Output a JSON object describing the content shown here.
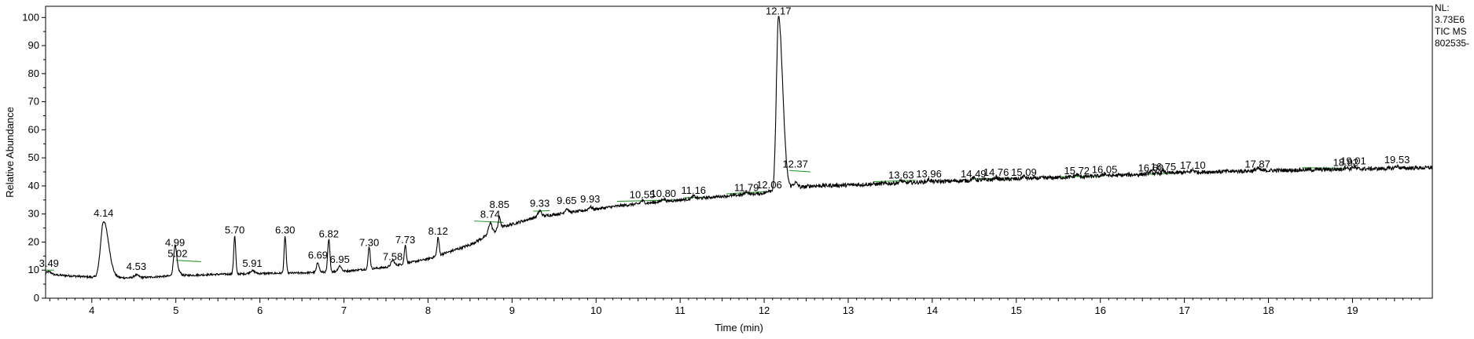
{
  "info": {
    "nl_label": "NL:",
    "nl_value": "3.73E6",
    "scan_filter": "TIC  MS",
    "file_name": "802535-"
  },
  "chart_data": {
    "type": "line",
    "xlabel": "Time (min)",
    "ylabel": "Relative Abundance",
    "xlim": [
      3.45,
      19.95
    ],
    "ylim": [
      0,
      104
    ],
    "x_ticks": [
      4,
      5,
      6,
      7,
      8,
      9,
      10,
      11,
      12,
      13,
      14,
      15,
      16,
      17,
      18,
      19
    ],
    "y_ticks": [
      0,
      10,
      20,
      30,
      40,
      50,
      60,
      70,
      80,
      90,
      100
    ],
    "grid": false,
    "colors": {
      "trace": "#000000",
      "integration": "#2e9a2e",
      "frame": "#000000"
    },
    "baseline_points": [
      {
        "x": 3.45,
        "y": 8.5
      },
      {
        "x": 4.0,
        "y": 7.5
      },
      {
        "x": 4.5,
        "y": 7.2
      },
      {
        "x": 5.0,
        "y": 8.0
      },
      {
        "x": 5.5,
        "y": 8.5
      },
      {
        "x": 6.0,
        "y": 8.8
      },
      {
        "x": 6.5,
        "y": 9.0
      },
      {
        "x": 7.0,
        "y": 9.6
      },
      {
        "x": 7.5,
        "y": 11.0
      },
      {
        "x": 8.0,
        "y": 14.0
      },
      {
        "x": 8.5,
        "y": 19.0
      },
      {
        "x": 8.9,
        "y": 25.5
      },
      {
        "x": 9.3,
        "y": 29.0
      },
      {
        "x": 9.8,
        "y": 31.0
      },
      {
        "x": 10.3,
        "y": 33.0
      },
      {
        "x": 11.0,
        "y": 35.0
      },
      {
        "x": 11.5,
        "y": 36.3
      },
      {
        "x": 12.05,
        "y": 37.5
      },
      {
        "x": 12.55,
        "y": 40.0
      },
      {
        "x": 13.0,
        "y": 40.3
      },
      {
        "x": 14.0,
        "y": 41.5
      },
      {
        "x": 15.0,
        "y": 42.5
      },
      {
        "x": 16.0,
        "y": 43.5
      },
      {
        "x": 17.0,
        "y": 44.8
      },
      {
        "x": 18.0,
        "y": 45.5
      },
      {
        "x": 19.0,
        "y": 46.0
      },
      {
        "x": 19.95,
        "y": 46.5
      }
    ],
    "peaks": [
      {
        "label": "3.49",
        "x": 3.49,
        "y": 10.0,
        "height": 1.0,
        "width": 0.03
      },
      {
        "label": "4.14",
        "x": 4.14,
        "y": 28.0,
        "height": 20.0,
        "width": 0.035
      },
      {
        "label": "4.53",
        "x": 4.53,
        "y": 9.0,
        "height": 1.0,
        "width": 0.03
      },
      {
        "label": "4.99",
        "x": 4.99,
        "y": 17.5,
        "height": 9.5,
        "width": 0.018
      },
      {
        "label": "5.02",
        "x": 5.02,
        "y": 13.5,
        "height": 2.0,
        "width": 0.03
      },
      {
        "label": "5.70",
        "x": 5.7,
        "y": 22.0,
        "height": 13.5,
        "width": 0.012
      },
      {
        "label": "5.91",
        "x": 5.91,
        "y": 10.0,
        "height": 1.0,
        "width": 0.03
      },
      {
        "label": "6.30",
        "x": 6.3,
        "y": 22.0,
        "height": 13.0,
        "width": 0.012
      },
      {
        "label": "6.69",
        "x": 6.69,
        "y": 13.0,
        "height": 3.5,
        "width": 0.015
      },
      {
        "label": "6.82",
        "x": 6.82,
        "y": 20.5,
        "height": 11.5,
        "width": 0.013
      },
      {
        "label": "6.95",
        "x": 6.95,
        "y": 11.5,
        "height": 2.0,
        "width": 0.02
      },
      {
        "label": "7.30",
        "x": 7.3,
        "y": 17.5,
        "height": 8.0,
        "width": 0.012
      },
      {
        "label": "7.58",
        "x": 7.58,
        "y": 12.5,
        "height": 2.0,
        "width": 0.02
      },
      {
        "label": "7.73",
        "x": 7.73,
        "y": 18.5,
        "height": 6.5,
        "width": 0.012
      },
      {
        "label": "8.12",
        "x": 8.12,
        "y": 21.5,
        "height": 6.5,
        "width": 0.012
      },
      {
        "label": "8.74",
        "x": 8.74,
        "y": 27.5,
        "height": 4.0,
        "width": 0.02
      },
      {
        "label": "8.85",
        "x": 8.85,
        "y": 31.0,
        "height": 4.0,
        "width": 0.015
      },
      {
        "label": "9.33",
        "x": 9.33,
        "y": 31.5,
        "height": 2.0,
        "width": 0.02
      },
      {
        "label": "9.65",
        "x": 9.65,
        "y": 32.5,
        "height": 1.5,
        "width": 0.02
      },
      {
        "label": "9.93",
        "x": 9.93,
        "y": 33.0,
        "height": 1.0,
        "width": 0.02
      },
      {
        "label": "10.55",
        "x": 10.55,
        "y": 34.5,
        "height": 1.0,
        "width": 0.02
      },
      {
        "label": "10.80",
        "x": 10.8,
        "y": 35.0,
        "height": 1.0,
        "width": 0.02
      },
      {
        "label": "11.16",
        "x": 11.16,
        "y": 36.0,
        "height": 1.0,
        "width": 0.02
      },
      {
        "label": "11.79",
        "x": 11.79,
        "y": 37.0,
        "height": 1.0,
        "width": 0.02
      },
      {
        "label": "12.06",
        "x": 12.06,
        "y": 38.0,
        "height": 1.0,
        "width": 0.02
      },
      {
        "label": "12.17",
        "x": 12.17,
        "y": 100.0,
        "height": 62.0,
        "width": 0.025
      },
      {
        "label": "12.37",
        "x": 12.37,
        "y": 45.5,
        "height": 2.0,
        "width": 0.03
      },
      {
        "label": "13.63",
        "x": 13.63,
        "y": 41.5,
        "height": 0.8,
        "width": 0.02
      },
      {
        "label": "13.96",
        "x": 13.96,
        "y": 42.0,
        "height": 0.8,
        "width": 0.02
      },
      {
        "label": "14.49",
        "x": 14.49,
        "y": 42.0,
        "height": 0.8,
        "width": 0.02
      },
      {
        "label": "14.76",
        "x": 14.76,
        "y": 42.5,
        "height": 0.8,
        "width": 0.02
      },
      {
        "label": "15.09",
        "x": 15.09,
        "y": 42.5,
        "height": 0.8,
        "width": 0.02
      },
      {
        "label": "15.72",
        "x": 15.72,
        "y": 43.0,
        "height": 0.8,
        "width": 0.02
      },
      {
        "label": "16.05",
        "x": 16.05,
        "y": 43.5,
        "height": 0.8,
        "width": 0.02
      },
      {
        "label": "16.60",
        "x": 16.6,
        "y": 44.0,
        "height": 0.8,
        "width": 0.02
      },
      {
        "label": "16.75",
        "x": 16.75,
        "y": 44.5,
        "height": 0.8,
        "width": 0.02
      },
      {
        "label": "17.10",
        "x": 17.1,
        "y": 45.0,
        "height": 0.8,
        "width": 0.02
      },
      {
        "label": "17.87",
        "x": 17.87,
        "y": 45.5,
        "height": 0.8,
        "width": 0.02
      },
      {
        "label": "18.92",
        "x": 18.92,
        "y": 46.0,
        "height": 0.8,
        "width": 0.02
      },
      {
        "label": "19.01",
        "x": 19.01,
        "y": 46.5,
        "height": 0.8,
        "width": 0.02
      },
      {
        "label": "19.53",
        "x": 19.53,
        "y": 47.0,
        "height": 0.8,
        "width": 0.02
      }
    ],
    "integration_segments": [
      {
        "x": [
          3.45,
          3.55
        ],
        "y": [
          10.0,
          10.0
        ]
      },
      {
        "x": [
          5.0,
          5.3
        ],
        "y": [
          13.5,
          13.0
        ]
      },
      {
        "x": [
          8.55,
          8.9
        ],
        "y": [
          27.5,
          27.0
        ]
      },
      {
        "x": [
          9.25,
          9.45
        ],
        "y": [
          31.0,
          31.2
        ]
      },
      {
        "x": [
          10.25,
          10.95
        ],
        "y": [
          34.5,
          35.0
        ]
      },
      {
        "x": [
          11.05,
          11.3
        ],
        "y": [
          35.8,
          36.0
        ]
      },
      {
        "x": [
          11.55,
          12.05
        ],
        "y": [
          37.2,
          38.0
        ]
      },
      {
        "x": [
          12.3,
          12.55
        ],
        "y": [
          45.5,
          45.0
        ]
      },
      {
        "x": [
          13.3,
          13.8
        ],
        "y": [
          41.5,
          42.0
        ]
      },
      {
        "x": [
          14.45,
          14.95
        ],
        "y": [
          42.5,
          42.8
        ]
      },
      {
        "x": [
          15.5,
          16.05
        ],
        "y": [
          43.2,
          43.6
        ]
      },
      {
        "x": [
          16.4,
          16.9
        ],
        "y": [
          44.0,
          44.5
        ]
      },
      {
        "x": [
          18.4,
          18.95
        ],
        "y": [
          46.5,
          46.3
        ]
      }
    ]
  }
}
